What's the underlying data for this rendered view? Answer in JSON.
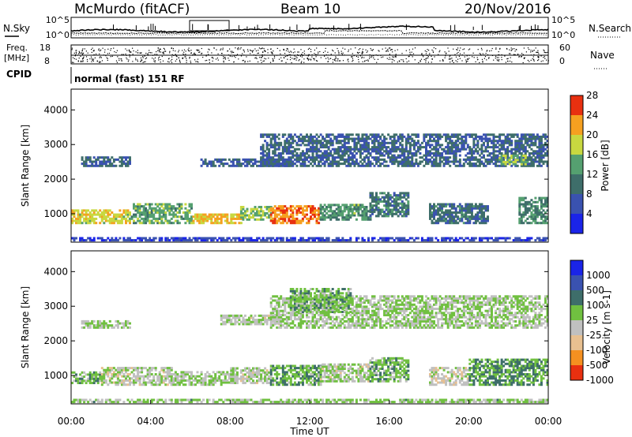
{
  "header": {
    "station": "McMurdo (fitACF)",
    "beam": "Beam 10",
    "date": "20/Nov/2016"
  },
  "top_panel": {
    "left_label": "N.Sky",
    "right_label": "N.Search",
    "left_ticks": [
      "10^5",
      "10^0"
    ],
    "right_ticks": [
      "10^5",
      "10^0"
    ]
  },
  "freq_panel": {
    "left_label_1": "Freq.",
    "left_label_2": "[MHz]",
    "right_label": "Nave",
    "left_ticks": [
      "18",
      "8"
    ],
    "right_ticks": [
      "60",
      "0"
    ]
  },
  "cpid": {
    "label": "CPID",
    "text": "normal (fast) 151 RF"
  },
  "chart_data": [
    {
      "type": "heatmap",
      "name": "power",
      "ylabel": "Slant Range [km]",
      "yticks": [
        1000,
        2000,
        3000,
        4000
      ],
      "ylim": [
        180,
        4600
      ],
      "xlim": [
        0,
        24
      ],
      "colorbar_label": "Power [dB]",
      "colorbar_ticks": [
        "4",
        "8",
        "12",
        "16",
        "20",
        "24",
        "28"
      ],
      "colorbar_range": [
        0,
        30
      ],
      "colors": [
        "#1a24e8",
        "#3a52b0",
        "#3e6e6a",
        "#55a070",
        "#c8d840",
        "#f5a020",
        "#e83010"
      ],
      "regions": [
        {
          "t0": 0.0,
          "t1": 3.0,
          "r0": 700,
          "r1": 1100,
          "value": 20
        },
        {
          "t0": 3.0,
          "t1": 6.0,
          "r0": 700,
          "r1": 1250,
          "value": 15
        },
        {
          "t0": 6.0,
          "t1": 8.5,
          "r0": 700,
          "r1": 1000,
          "value": 22
        },
        {
          "t0": 8.5,
          "t1": 10.0,
          "r0": 800,
          "r1": 1200,
          "value": 17
        },
        {
          "t0": 10.0,
          "t1": 12.5,
          "r0": 700,
          "r1": 1200,
          "value": 25
        },
        {
          "t0": 12.5,
          "t1": 15.0,
          "r0": 800,
          "r1": 1250,
          "value": 14
        },
        {
          "t0": 15.0,
          "t1": 17.0,
          "r0": 900,
          "r1": 1600,
          "value": 11
        },
        {
          "t0": 18.0,
          "t1": 21.0,
          "r0": 700,
          "r1": 1250,
          "value": 10
        },
        {
          "t0": 22.5,
          "t1": 24.0,
          "r0": 700,
          "r1": 1450,
          "value": 13
        },
        {
          "t0": 0.5,
          "t1": 3.0,
          "r0": 2350,
          "r1": 2650,
          "value": 9
        },
        {
          "t0": 6.5,
          "t1": 11.0,
          "r0": 2350,
          "r1": 2550,
          "value": 8
        },
        {
          "t0": 9.5,
          "t1": 24.0,
          "r0": 2350,
          "r1": 3300,
          "value": 9
        },
        {
          "t0": 21.5,
          "t1": 23.0,
          "r0": 2400,
          "r1": 2700,
          "value": 16
        },
        {
          "t0": 0.0,
          "t1": 24.0,
          "r0": 200,
          "r1": 320,
          "value": 5
        }
      ]
    },
    {
      "type": "heatmap",
      "name": "velocity",
      "ylabel": "Slant Range [km]",
      "yticks": [
        1000,
        2000,
        3000,
        4000
      ],
      "ylim": [
        180,
        4600
      ],
      "xlim": [
        0,
        24
      ],
      "colorbar_label": "Velocity [m s-1]",
      "colorbar_ticks": [
        "1000",
        "500",
        "100",
        "25",
        "-25",
        "-100",
        "-500",
        "-1000"
      ],
      "colorbar_range": [
        -1100,
        1100
      ],
      "colors": [
        "#1a24e8",
        "#3a52b0",
        "#3e6e6a",
        "#70c040",
        "#c0c0c0",
        "#e8c090",
        "#f59020",
        "#e83010"
      ],
      "regions": [
        {
          "t0": 0.0,
          "t1": 1.5,
          "r0": 750,
          "r1": 1100,
          "value": -150
        },
        {
          "t0": 1.5,
          "t1": 5.0,
          "r0": 700,
          "r1": 1200,
          "value": 90
        },
        {
          "t0": 5.0,
          "t1": 8.0,
          "r0": 700,
          "r1": 1100,
          "value": 0
        },
        {
          "t0": 8.0,
          "t1": 10.0,
          "r0": 750,
          "r1": 1200,
          "value": 80
        },
        {
          "t0": 10.0,
          "t1": 12.5,
          "r0": 700,
          "r1": 1250,
          "value": -200
        },
        {
          "t0": 12.5,
          "t1": 15.0,
          "r0": 800,
          "r1": 1300,
          "value": 70
        },
        {
          "t0": 15.0,
          "t1": 17.0,
          "r0": 800,
          "r1": 1500,
          "value": -150
        },
        {
          "t0": 18.0,
          "t1": 20.0,
          "r0": 700,
          "r1": 1200,
          "value": 150
        },
        {
          "t0": 20.0,
          "t1": 24.0,
          "r0": 700,
          "r1": 1450,
          "value": -300
        },
        {
          "t0": 0.5,
          "t1": 3.0,
          "r0": 2350,
          "r1": 2550,
          "value": 0
        },
        {
          "t0": 7.5,
          "t1": 10.5,
          "r0": 2450,
          "r1": 2700,
          "value": 60
        },
        {
          "t0": 10.0,
          "t1": 24.0,
          "r0": 2350,
          "r1": 3300,
          "value": 0
        },
        {
          "t0": 11.0,
          "t1": 14.0,
          "r0": 2800,
          "r1": 3500,
          "value": -150
        },
        {
          "t0": 0.0,
          "t1": 24.0,
          "r0": 200,
          "r1": 320,
          "value": -40
        }
      ]
    }
  ],
  "x_axis": {
    "label": "Time UT",
    "ticks": [
      "00:00",
      "04:00",
      "08:00",
      "12:00",
      "16:00",
      "20:00",
      "00:00"
    ]
  }
}
